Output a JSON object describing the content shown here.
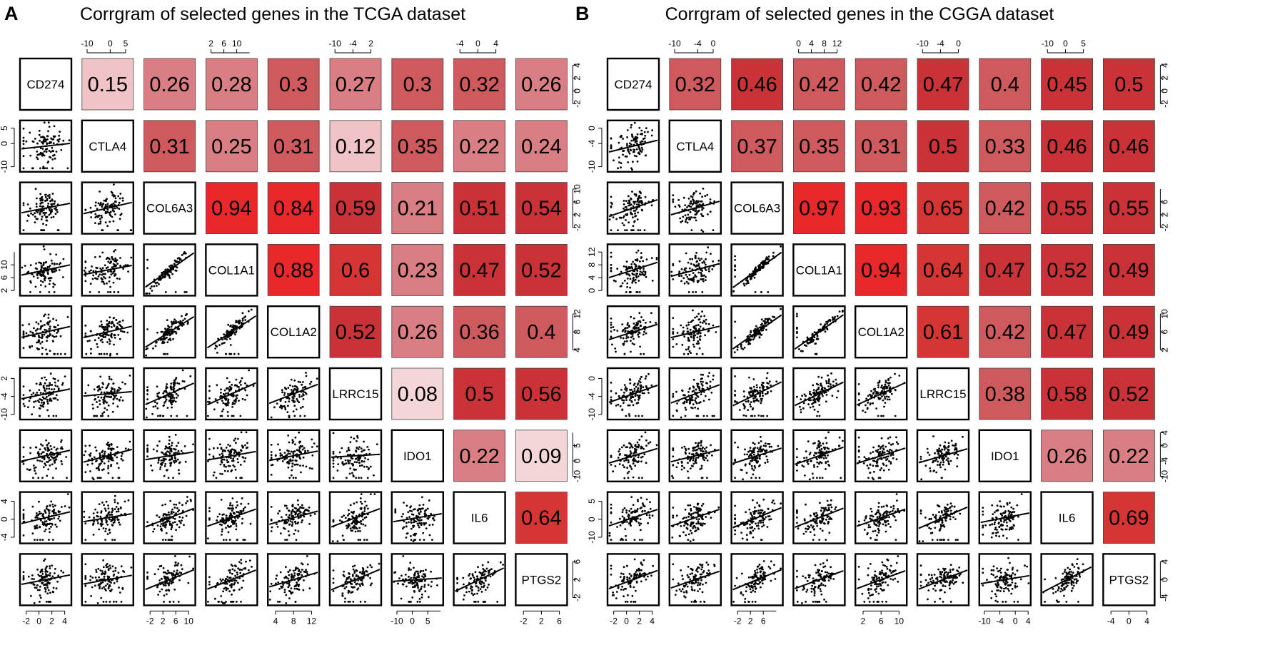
{
  "panels": [
    {
      "letter": "A",
      "title": "Corrgram of selected genes in the TCGA dataset",
      "genes": [
        "CD274",
        "CTLA4",
        "COL6A3",
        "COL1A1",
        "COL1A2",
        "LRRC15",
        "IDO1",
        "IL6",
        "PTGS2"
      ],
      "axis_ticks": [
        [
          "-2",
          "0",
          "2",
          "4"
        ],
        [
          "-10",
          "0",
          "5"
        ],
        [
          "-2",
          "2",
          "6",
          "10"
        ],
        [
          "2",
          "6",
          "10"
        ],
        [
          "4",
          "8",
          "12"
        ],
        [
          "-10",
          "-4",
          "2"
        ],
        [
          "-10",
          "0",
          "5"
        ],
        [
          "-4",
          "0",
          "4"
        ],
        [
          "-2",
          "2",
          "6"
        ]
      ]
    },
    {
      "letter": "B",
      "title": "Corrgram of selected genes in the CGGA dataset",
      "genes": [
        "CD274",
        "CTLA4",
        "COL6A3",
        "COL1A1",
        "COL1A2",
        "LRRC15",
        "IDO1",
        "IL6",
        "PTGS2"
      ],
      "axis_ticks": [
        [
          "-2",
          "0",
          "2",
          "4"
        ],
        [
          "-10",
          "-4",
          "0"
        ],
        [
          "-2",
          "2",
          "6"
        ],
        [
          "0",
          "4",
          "8",
          "12"
        ],
        [
          "2",
          "6",
          "10"
        ],
        [
          "-10",
          "-4",
          "0"
        ],
        [
          "-10",
          "-4",
          "0",
          "4"
        ],
        [
          "-10",
          "0",
          "5"
        ],
        [
          "-4",
          "0",
          "4"
        ]
      ]
    }
  ],
  "chart_data": [
    {
      "type": "heatmap",
      "title": "Corrgram of selected genes in the TCGA dataset",
      "variables": [
        "CD274",
        "CTLA4",
        "COL6A3",
        "COL1A1",
        "COL1A2",
        "LRRC15",
        "IDO1",
        "IL6",
        "PTGS2"
      ],
      "upper_panel": "correlation coefficient (shaded red)",
      "lower_panel": "scatter plot with fitted regression line",
      "correlations": [
        [
          "",
          "0.15",
          "0.26",
          "0.28",
          "0.3",
          "0.27",
          "0.3",
          "0.32",
          "0.26"
        ],
        [
          "",
          "",
          "0.31",
          "0.25",
          "0.31",
          "0.12",
          "0.35",
          "0.22",
          "0.24"
        ],
        [
          "",
          "",
          "",
          "0.94",
          "0.84",
          "0.59",
          "0.21",
          "0.51",
          "0.54"
        ],
        [
          "",
          "",
          "",
          "",
          "0.88",
          "0.6",
          "0.23",
          "0.47",
          "0.52"
        ],
        [
          "",
          "",
          "",
          "",
          "",
          "0.52",
          "0.26",
          "0.36",
          "0.4"
        ],
        [
          "",
          "",
          "",
          "",
          "",
          "",
          "0.08",
          "0.5",
          "0.56"
        ],
        [
          "",
          "",
          "",
          "",
          "",
          "",
          "",
          "0.22",
          "0.09"
        ],
        [
          "",
          "",
          "",
          "",
          "",
          "",
          "",
          "",
          "0.64"
        ],
        [
          "",
          "",
          "",
          "",
          "",
          "",
          "",
          "",
          ""
        ]
      ]
    },
    {
      "type": "heatmap",
      "title": "Corrgram of selected genes in the CGGA dataset",
      "variables": [
        "CD274",
        "CTLA4",
        "COL6A3",
        "COL1A1",
        "COL1A2",
        "LRRC15",
        "IDO1",
        "IL6",
        "PTGS2"
      ],
      "upper_panel": "correlation coefficient (shaded red)",
      "lower_panel": "scatter plot with fitted regression line",
      "correlations": [
        [
          "",
          "0.32",
          "0.46",
          "0.42",
          "0.42",
          "0.47",
          "0.4",
          "0.45",
          "0.5"
        ],
        [
          "",
          "",
          "0.37",
          "0.35",
          "0.31",
          "0.5",
          "0.33",
          "0.46",
          "0.46"
        ],
        [
          "",
          "",
          "",
          "0.97",
          "0.93",
          "0.65",
          "0.42",
          "0.55",
          "0.55"
        ],
        [
          "",
          "",
          "",
          "",
          "0.94",
          "0.64",
          "0.47",
          "0.52",
          "0.49"
        ],
        [
          "",
          "",
          "",
          "",
          "",
          "0.61",
          "0.42",
          "0.47",
          "0.49"
        ],
        [
          "",
          "",
          "",
          "",
          "",
          "",
          "0.38",
          "0.58",
          "0.52"
        ],
        [
          "",
          "",
          "",
          "",
          "",
          "",
          "",
          "0.26",
          "0.22"
        ],
        [
          "",
          "",
          "",
          "",
          "",
          "",
          "",
          "",
          "0.69"
        ],
        [
          "",
          "",
          "",
          "",
          "",
          "",
          "",
          "",
          ""
        ]
      ]
    }
  ]
}
